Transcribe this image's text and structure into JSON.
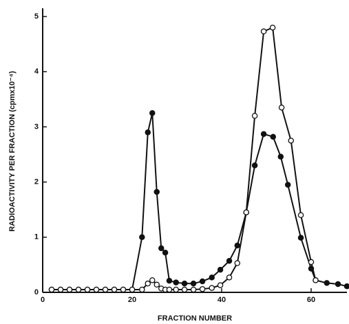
{
  "chart_data": {
    "type": "line",
    "x_label": "FRACTION NUMBER",
    "y_label": "RADIOACTIVITY PER FRACTION (cpmx10⁻⁴)",
    "xlim": [
      0,
      68
    ],
    "xticks": [
      0,
      20,
      40,
      60
    ],
    "ylim": [
      0,
      5.15
    ],
    "yticks": [
      0,
      1,
      2,
      3,
      4,
      5
    ],
    "series": [
      {
        "marker": "filled",
        "color": "#111111",
        "x": [
          2,
          4,
          6,
          8,
          10,
          12,
          14,
          16,
          18,
          20,
          22.2,
          23.5,
          24.5,
          25.5,
          26.5,
          27.4,
          28.3,
          29.8,
          31.7,
          33.7,
          35.7,
          37.8,
          39.7,
          41.7,
          43.5,
          45.5,
          47.4,
          49.4,
          51.5,
          53.2,
          54.8,
          57.7,
          60,
          61,
          63.5,
          66,
          68
        ],
        "values": [
          0.05,
          0.05,
          0.05,
          0.05,
          0.05,
          0.05,
          0.05,
          0.05,
          0.05,
          0.05,
          1.0,
          2.9,
          3.25,
          1.82,
          0.8,
          0.72,
          0.21,
          0.18,
          0.16,
          0.16,
          0.2,
          0.27,
          0.41,
          0.57,
          0.85,
          1.45,
          2.3,
          2.87,
          2.82,
          2.46,
          1.95,
          0.99,
          0.43,
          0.22,
          0.17,
          0.15,
          0.11
        ]
      },
      {
        "marker": "open",
        "color": "#111111",
        "x": [
          2,
          4,
          6,
          8,
          10,
          12,
          14,
          16,
          18,
          20,
          22.2,
          23.5,
          24.5,
          25.5,
          26.5,
          27.4,
          28.3,
          29.8,
          31.7,
          33.7,
          35.7,
          37.8,
          39.7,
          41.7,
          43.5,
          45.5,
          47.4,
          49.4,
          51.4,
          53.4,
          55.5,
          57.7,
          60,
          61
        ],
        "values": [
          0.05,
          0.05,
          0.05,
          0.05,
          0.05,
          0.05,
          0.05,
          0.05,
          0.05,
          0.05,
          0.05,
          0.16,
          0.22,
          0.14,
          0.07,
          0.05,
          0.05,
          0.05,
          0.05,
          0.05,
          0.06,
          0.08,
          0.13,
          0.27,
          0.53,
          1.45,
          3.2,
          4.73,
          4.8,
          3.35,
          2.75,
          1.4,
          0.55,
          0.22
        ]
      }
    ]
  }
}
